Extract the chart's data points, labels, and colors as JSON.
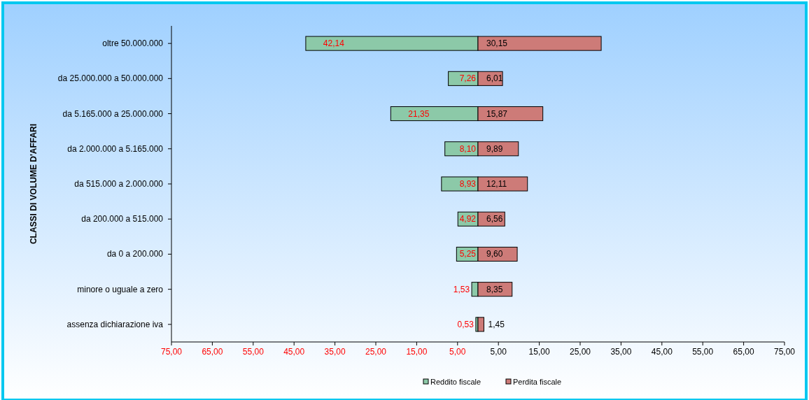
{
  "chart_data": {
    "type": "bar",
    "orientation": "horizontal",
    "stacked": true,
    "ylabel": "CLASSI DI VOLUME D'AFFARI",
    "categories": [
      "oltre 50.000.000",
      "da 25.000.000 a 50.000.000",
      "da 5.165.000 a 25.000.000",
      "da 2.000.000 a 5.165.000",
      "da 515.000 a 2.000.000",
      "da 200.000 a 515.000",
      "da 0 a 200.000",
      "minore o uguale a zero",
      "assenza dichiarazione iva"
    ],
    "series": [
      {
        "name": "Reddito fiscale",
        "color": "#8cc9a8",
        "base": [
          -42.14,
          -7.26,
          -21.35,
          -8.1,
          -8.93,
          -4.92,
          -5.25,
          -1.53,
          -0.53
        ],
        "values": [
          42.14,
          7.26,
          21.35,
          8.1,
          8.93,
          4.92,
          5.25,
          1.53,
          0.53
        ],
        "value_labels": [
          "42,14",
          "7,26",
          "21,35",
          "8,10",
          "8,93",
          "4,92",
          "5,25",
          "1,53",
          "0,53"
        ]
      },
      {
        "name": "Perdita fiscale",
        "color": "#cd7b78",
        "values": [
          30.15,
          6.01,
          15.87,
          9.89,
          12.11,
          6.56,
          9.6,
          8.35,
          1.45
        ],
        "value_labels": [
          "30,15",
          "6,01",
          "15,87",
          "9,89",
          "12,11",
          "6,56",
          "9,60",
          "8,35",
          "1,45"
        ]
      }
    ],
    "xlim": [
      -75,
      75
    ],
    "xticks": [
      {
        "value": -75,
        "label": "75,00"
      },
      {
        "value": -65,
        "label": "65,00"
      },
      {
        "value": -55,
        "label": "55,00"
      },
      {
        "value": -45,
        "label": "45,00"
      },
      {
        "value": -35,
        "label": "35,00"
      },
      {
        "value": -25,
        "label": "25,00"
      },
      {
        "value": -15,
        "label": "15,00"
      },
      {
        "value": -5,
        "label": "5,00"
      },
      {
        "value": 5,
        "label": "5,00"
      },
      {
        "value": 15,
        "label": "15,00"
      },
      {
        "value": 25,
        "label": "25,00"
      },
      {
        "value": 35,
        "label": "35,00"
      },
      {
        "value": 45,
        "label": "45,00"
      },
      {
        "value": 55,
        "label": "55,00"
      },
      {
        "value": 65,
        "label": "65,00"
      },
      {
        "value": 75,
        "label": "75,00"
      }
    ],
    "legend": "bottom",
    "grid": false
  }
}
